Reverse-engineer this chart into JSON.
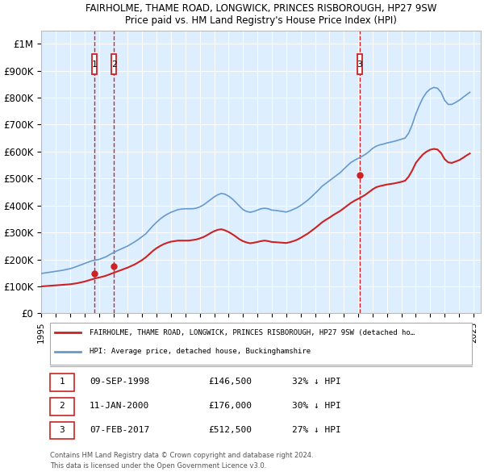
{
  "title1": "FAIRHOLME, THAME ROAD, LONGWICK, PRINCES RISBOROUGH, HP27 9SW",
  "title2": "Price paid vs. HM Land Registry's House Price Index (HPI)",
  "ylim": [
    0,
    1050000
  ],
  "xlim_start": 1995.0,
  "xlim_end": 2025.5,
  "yticks": [
    0,
    100000,
    200000,
    300000,
    400000,
    500000,
    600000,
    700000,
    800000,
    900000,
    1000000
  ],
  "ytick_labels": [
    "£0",
    "£100K",
    "£200K",
    "£300K",
    "£400K",
    "£500K",
    "£600K",
    "£700K",
    "£800K",
    "£900K",
    "£1M"
  ],
  "xticks": [
    1995,
    1996,
    1997,
    1998,
    1999,
    2000,
    2001,
    2002,
    2003,
    2004,
    2005,
    2006,
    2007,
    2008,
    2009,
    2010,
    2011,
    2012,
    2013,
    2014,
    2015,
    2016,
    2017,
    2018,
    2019,
    2020,
    2021,
    2022,
    2023,
    2024,
    2025
  ],
  "transaction_dates": [
    1998.69,
    2000.03,
    2017.1
  ],
  "transaction_prices": [
    146500,
    176000,
    512500
  ],
  "transaction_labels": [
    "1",
    "2",
    "3"
  ],
  "hpi_color": "#6699cc",
  "price_color": "#cc2222",
  "vline_color": "#cc0000",
  "marker_box_color": "#cc2222",
  "plot_bg": "#ddeeff",
  "grid_color": "#ffffff",
  "legend_line1": "FAIRHOLME, THAME ROAD, LONGWICK, PRINCES RISBOROUGH, HP27 9SW (detached ho…",
  "legend_line2": "HPI: Average price, detached house, Buckinghamshire",
  "table_data": [
    [
      "1",
      "09-SEP-1998",
      "£146,500",
      "32% ↓ HPI"
    ],
    [
      "2",
      "11-JAN-2000",
      "£176,000",
      "30% ↓ HPI"
    ],
    [
      "3",
      "07-FEB-2017",
      "£512,500",
      "27% ↓ HPI"
    ]
  ],
  "footnote1": "Contains HM Land Registry data © Crown copyright and database right 2024.",
  "footnote2": "This data is licensed under the Open Government Licence v3.0.",
  "hpi_x": [
    1995.0,
    1995.25,
    1995.5,
    1995.75,
    1996.0,
    1996.25,
    1996.5,
    1996.75,
    1997.0,
    1997.25,
    1997.5,
    1997.75,
    1998.0,
    1998.25,
    1998.5,
    1998.75,
    1999.0,
    1999.25,
    1999.5,
    1999.75,
    2000.0,
    2000.25,
    2000.5,
    2000.75,
    2001.0,
    2001.25,
    2001.5,
    2001.75,
    2002.0,
    2002.25,
    2002.5,
    2002.75,
    2003.0,
    2003.25,
    2003.5,
    2003.75,
    2004.0,
    2004.25,
    2004.5,
    2004.75,
    2005.0,
    2005.25,
    2005.5,
    2005.75,
    2006.0,
    2006.25,
    2006.5,
    2006.75,
    2007.0,
    2007.25,
    2007.5,
    2007.75,
    2008.0,
    2008.25,
    2008.5,
    2008.75,
    2009.0,
    2009.25,
    2009.5,
    2009.75,
    2010.0,
    2010.25,
    2010.5,
    2010.75,
    2011.0,
    2011.25,
    2011.5,
    2011.75,
    2012.0,
    2012.25,
    2012.5,
    2012.75,
    2013.0,
    2013.25,
    2013.5,
    2013.75,
    2014.0,
    2014.25,
    2014.5,
    2014.75,
    2015.0,
    2015.25,
    2015.5,
    2015.75,
    2016.0,
    2016.25,
    2016.5,
    2016.75,
    2017.0,
    2017.25,
    2017.5,
    2017.75,
    2018.0,
    2018.25,
    2018.5,
    2018.75,
    2019.0,
    2019.25,
    2019.5,
    2019.75,
    2020.0,
    2020.25,
    2020.5,
    2020.75,
    2021.0,
    2021.25,
    2021.5,
    2021.75,
    2022.0,
    2022.25,
    2022.5,
    2022.75,
    2023.0,
    2023.25,
    2023.5,
    2023.75,
    2024.0,
    2024.25,
    2024.5,
    2024.75
  ],
  "hpi_y": [
    148000,
    150000,
    152000,
    154000,
    156000,
    158000,
    160000,
    163000,
    166000,
    170000,
    175000,
    180000,
    185000,
    190000,
    195000,
    198000,
    200000,
    205000,
    210000,
    218000,
    225000,
    232000,
    238000,
    244000,
    250000,
    258000,
    266000,
    275000,
    285000,
    295000,
    310000,
    325000,
    338000,
    350000,
    360000,
    368000,
    375000,
    380000,
    385000,
    387000,
    388000,
    388000,
    388000,
    390000,
    395000,
    402000,
    412000,
    422000,
    432000,
    440000,
    445000,
    442000,
    435000,
    425000,
    412000,
    398000,
    385000,
    378000,
    375000,
    378000,
    383000,
    388000,
    390000,
    388000,
    383000,
    382000,
    380000,
    378000,
    376000,
    380000,
    386000,
    392000,
    400000,
    410000,
    420000,
    432000,
    445000,
    458000,
    472000,
    482000,
    492000,
    502000,
    512000,
    522000,
    535000,
    548000,
    560000,
    568000,
    575000,
    582000,
    590000,
    600000,
    612000,
    620000,
    625000,
    628000,
    632000,
    635000,
    638000,
    642000,
    646000,
    650000,
    668000,
    700000,
    740000,
    772000,
    800000,
    820000,
    832000,
    838000,
    835000,
    820000,
    790000,
    775000,
    775000,
    782000,
    790000,
    800000,
    810000,
    820000
  ],
  "price_x": [
    1995.0,
    1995.25,
    1995.5,
    1995.75,
    1996.0,
    1996.25,
    1996.5,
    1996.75,
    1997.0,
    1997.25,
    1997.5,
    1997.75,
    1998.0,
    1998.25,
    1998.5,
    1998.75,
    1999.0,
    1999.25,
    1999.5,
    1999.75,
    2000.0,
    2000.25,
    2000.5,
    2000.75,
    2001.0,
    2001.25,
    2001.5,
    2001.75,
    2002.0,
    2002.25,
    2002.5,
    2002.75,
    2003.0,
    2003.25,
    2003.5,
    2003.75,
    2004.0,
    2004.25,
    2004.5,
    2004.75,
    2005.0,
    2005.25,
    2005.5,
    2005.75,
    2006.0,
    2006.25,
    2006.5,
    2006.75,
    2007.0,
    2007.25,
    2007.5,
    2007.75,
    2008.0,
    2008.25,
    2008.5,
    2008.75,
    2009.0,
    2009.25,
    2009.5,
    2009.75,
    2010.0,
    2010.25,
    2010.5,
    2010.75,
    2011.0,
    2011.25,
    2011.5,
    2011.75,
    2012.0,
    2012.25,
    2012.5,
    2012.75,
    2013.0,
    2013.25,
    2013.5,
    2013.75,
    2014.0,
    2014.25,
    2014.5,
    2014.75,
    2015.0,
    2015.25,
    2015.5,
    2015.75,
    2016.0,
    2016.25,
    2016.5,
    2016.75,
    2017.0,
    2017.25,
    2017.5,
    2017.75,
    2018.0,
    2018.25,
    2018.5,
    2018.75,
    2019.0,
    2019.25,
    2019.5,
    2019.75,
    2020.0,
    2020.25,
    2020.5,
    2020.75,
    2021.0,
    2021.25,
    2021.5,
    2021.75,
    2022.0,
    2022.25,
    2022.5,
    2022.75,
    2023.0,
    2023.25,
    2023.5,
    2023.75,
    2024.0,
    2024.25,
    2024.5,
    2024.75
  ],
  "price_y": [
    100000,
    101000,
    102000,
    103000,
    104000,
    105000,
    106000,
    107000,
    108000,
    110000,
    112000,
    115000,
    118000,
    122000,
    126000,
    130000,
    133000,
    136000,
    140000,
    145000,
    150000,
    155000,
    160000,
    165000,
    170000,
    176000,
    182000,
    190000,
    198000,
    208000,
    220000,
    232000,
    242000,
    250000,
    257000,
    262000,
    266000,
    268000,
    270000,
    270000,
    270000,
    270000,
    272000,
    274000,
    278000,
    283000,
    290000,
    298000,
    305000,
    310000,
    312000,
    308000,
    302000,
    294000,
    285000,
    275000,
    268000,
    263000,
    260000,
    262000,
    265000,
    268000,
    270000,
    268000,
    265000,
    264000,
    263000,
    262000,
    261000,
    264000,
    268000,
    273000,
    280000,
    288000,
    296000,
    306000,
    316000,
    327000,
    338000,
    347000,
    355000,
    364000,
    372000,
    380000,
    390000,
    400000,
    410000,
    418000,
    425000,
    432000,
    440000,
    450000,
    460000,
    468000,
    472000,
    475000,
    478000,
    480000,
    482000,
    485000,
    488000,
    492000,
    507000,
    530000,
    558000,
    575000,
    590000,
    600000,
    607000,
    610000,
    608000,
    595000,
    572000,
    560000,
    558000,
    563000,
    568000,
    576000,
    585000,
    593000
  ]
}
